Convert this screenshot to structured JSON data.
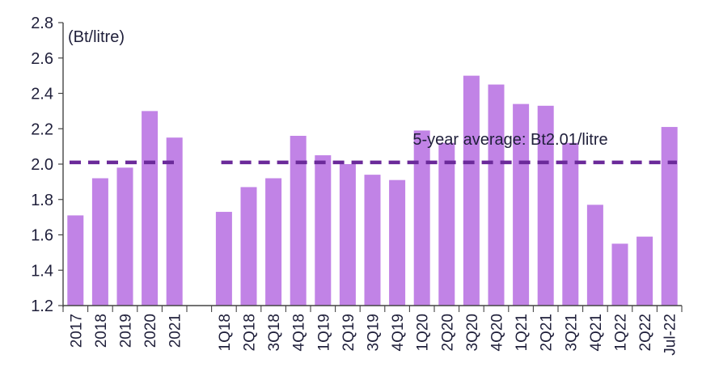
{
  "chart_data": {
    "type": "bar",
    "unit_label": "(Bt/litre)",
    "categories": [
      "2017",
      "2018",
      "2019",
      "2020",
      "2021",
      "1Q18",
      "2Q18",
      "3Q18",
      "4Q18",
      "1Q19",
      "2Q19",
      "3Q19",
      "4Q19",
      "1Q20",
      "2Q20",
      "3Q20",
      "4Q20",
      "1Q21",
      "2Q21",
      "3Q21",
      "4Q21",
      "1Q22",
      "2Q22",
      "Jul-22"
    ],
    "values": [
      1.71,
      1.92,
      1.98,
      2.3,
      2.15,
      1.73,
      1.87,
      1.92,
      2.16,
      2.05,
      2.0,
      1.94,
      1.91,
      2.19,
      2.12,
      2.5,
      2.45,
      2.34,
      2.33,
      2.12,
      1.77,
      1.55,
      1.59,
      2.21
    ],
    "ylim": [
      1.2,
      2.8
    ],
    "yticks": [
      "1.2",
      "1.4",
      "1.6",
      "1.8",
      "2.0",
      "2.2",
      "2.4",
      "2.6",
      "2.8"
    ],
    "average": {
      "value": 2.01,
      "label": "5-year average: Bt2.01/litre"
    },
    "colors": {
      "bar": "#c183e6",
      "average_line": "#6b2a9a",
      "axis": "#444444",
      "text": "#1f1f3a"
    }
  }
}
